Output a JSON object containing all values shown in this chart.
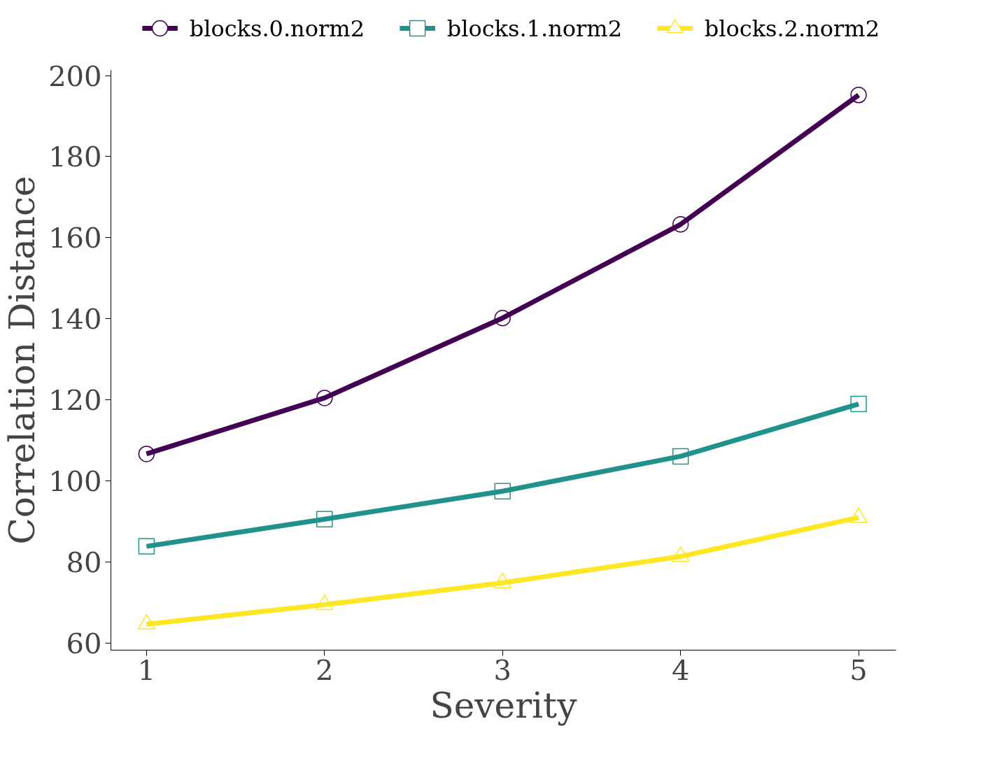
{
  "chart_data": {
    "type": "line",
    "xlabel": "Severity",
    "ylabel": "Correlation Distance",
    "x": [
      1,
      2,
      3,
      4,
      5
    ],
    "series": [
      {
        "name": "blocks.0.norm2",
        "color": "#440154",
        "marker": "circle",
        "values": [
          106.7,
          120.5,
          140.2,
          163.3,
          195.2
        ]
      },
      {
        "name": "blocks.1.norm2",
        "color": "#21918c",
        "marker": "square",
        "values": [
          83.9,
          90.6,
          97.5,
          106.1,
          119.0
        ]
      },
      {
        "name": "blocks.2.norm2",
        "color": "#fde725",
        "marker": "triangle",
        "values": [
          64.7,
          69.5,
          74.9,
          81.4,
          91.0
        ]
      }
    ],
    "xlim": [
      0.8,
      5.21
    ],
    "ylim": [
      58.3,
      201.3
    ],
    "xticks": [
      1,
      2,
      3,
      4,
      5
    ],
    "yticks": [
      60,
      80,
      100,
      120,
      140,
      160,
      180,
      200
    ],
    "grid": false,
    "legend": "top",
    "line_style": "solid"
  }
}
